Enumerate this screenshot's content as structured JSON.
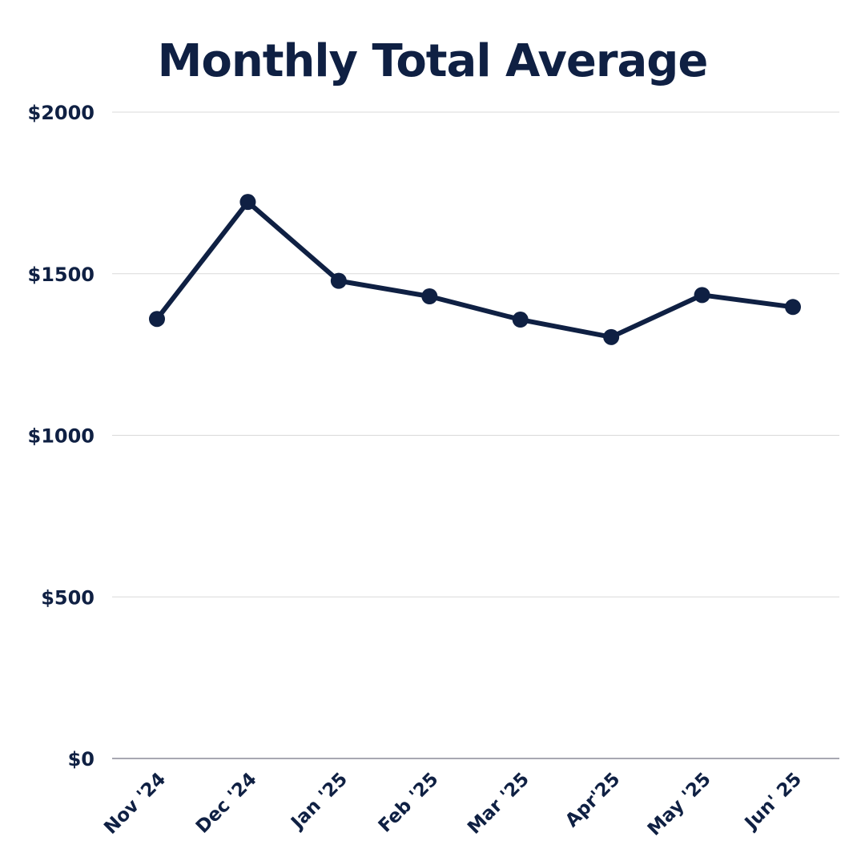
{
  "colors": {
    "line": "#0f2043",
    "text": "#0f2043",
    "grid": "#d9d9d9",
    "axis": "#8c8c99",
    "background": "#ffffff"
  },
  "chart_data": {
    "type": "line",
    "title": "Monthly Total Average",
    "xlabel": "",
    "ylabel": "",
    "categories": [
      "Nov '24",
      "Dec '24",
      "Jan '25",
      "Feb '25",
      "Mar '25",
      "Apr'25",
      "May '25",
      "Jun' 25"
    ],
    "series": [
      {
        "values": [
          1360,
          1722,
          1478,
          1430,
          1358,
          1304,
          1434,
          1397
        ]
      }
    ],
    "ylim": [
      0,
      2000
    ],
    "yticks": [
      0,
      500,
      1000,
      1500,
      2000
    ],
    "ytick_labels": [
      "$0",
      "$500",
      "$1000",
      "$1500",
      "$2000"
    ],
    "grid": "horizontal",
    "legend": "none",
    "markers": true
  }
}
